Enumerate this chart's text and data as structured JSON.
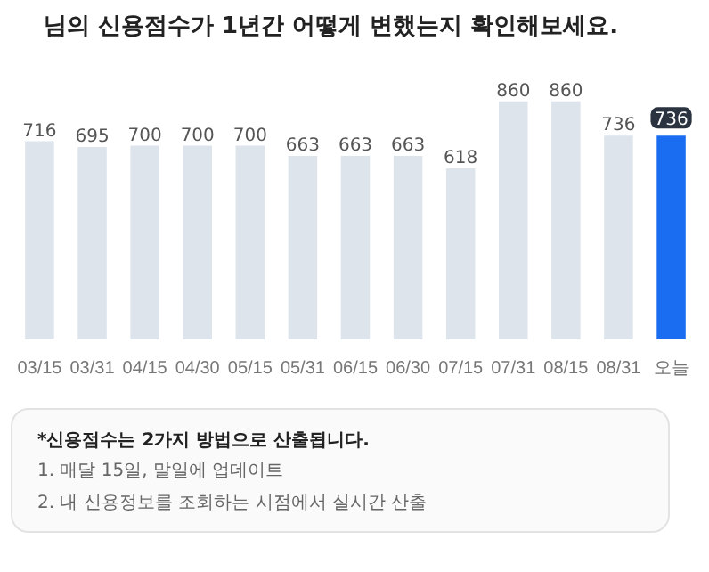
{
  "chart_data": {
    "type": "bar",
    "title": "님의 신용점수가 1년간 어떻게 변했는지 확인해보세요.",
    "categories": [
      "03/15",
      "03/31",
      "04/15",
      "04/30",
      "05/15",
      "05/31",
      "06/15",
      "06/30",
      "07/15",
      "07/31",
      "08/15",
      "08/31",
      "오늘"
    ],
    "values": [
      716,
      695,
      700,
      700,
      700,
      663,
      663,
      663,
      618,
      860,
      860,
      736,
      736
    ],
    "colors": [
      "#dde4eb",
      "#dde4eb",
      "#dde4eb",
      "#dde4eb",
      "#dde4eb",
      "#dde4eb",
      "#dde4eb",
      "#dde4eb",
      "#dde4eb",
      "#dde4eb",
      "#dde4eb",
      "#dde4eb",
      "#1a6cf0"
    ],
    "data_labels": true,
    "grid": false,
    "annotations": [
      "*신용점수는 2가지 방법으로 산출됩니다.",
      "1. 매달 15일, 말일에 업데이트",
      "2. 내 신용정보를 조회하는 시점에서 실시간 산출"
    ]
  }
}
